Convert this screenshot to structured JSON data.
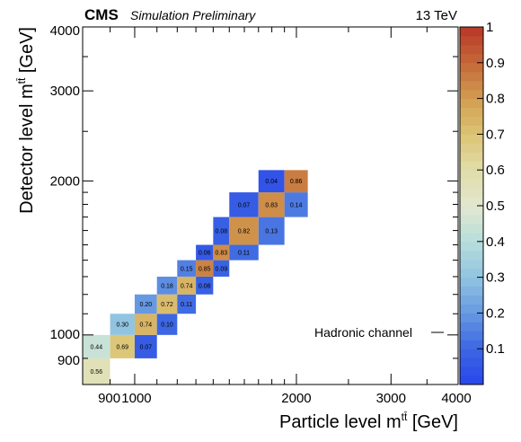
{
  "header": {
    "experiment": "CMS",
    "status": "Simulation Preliminary",
    "energy": "13 TeV"
  },
  "chart_data": {
    "type": "heatmap",
    "xlabel_main": "Particle level m",
    "xlabel_sup": "tt̄",
    "xlabel_unit": "[GeV]",
    "ylabel_main": "Detector level m",
    "ylabel_sup": "tt̄",
    "ylabel_unit": "[GeV]",
    "bin_edges": [
      800,
      900,
      1000,
      1100,
      1200,
      1300,
      1400,
      1500,
      1700,
      1900,
      2100,
      2400,
      2800,
      4000
    ],
    "xlim": [
      800,
      4000
    ],
    "ylim": [
      800,
      4000
    ],
    "x_tick_labels": [
      "900",
      "1000",
      "2000",
      "3000",
      "4000"
    ],
    "y_tick_labels": [
      "900",
      "1000",
      "2000",
      "3000",
      "4000"
    ],
    "zlim": [
      0,
      1
    ],
    "colorbar_ticks": [
      "0.1",
      "0.2",
      "0.3",
      "0.4",
      "0.5",
      "0.6",
      "0.7",
      "0.8",
      "0.9",
      "1"
    ],
    "annotation": "Hadronic channel",
    "grid": false,
    "cells": [
      {
        "xbin": 0,
        "ybin": 0,
        "value": 0.56,
        "label": "0.56"
      },
      {
        "xbin": 0,
        "ybin": 1,
        "value": 0.44,
        "label": "0.44"
      },
      {
        "xbin": 1,
        "ybin": 1,
        "value": 0.69,
        "label": "0.69"
      },
      {
        "xbin": 2,
        "ybin": 1,
        "value": 0.07,
        "label": "0.07"
      },
      {
        "xbin": 1,
        "ybin": 2,
        "value": 0.3,
        "label": "0.30"
      },
      {
        "xbin": 2,
        "ybin": 2,
        "value": 0.74,
        "label": "0.74"
      },
      {
        "xbin": 3,
        "ybin": 2,
        "value": 0.1,
        "label": "0.10"
      },
      {
        "xbin": 2,
        "ybin": 3,
        "value": 0.2,
        "label": "0.20"
      },
      {
        "xbin": 3,
        "ybin": 3,
        "value": 0.72,
        "label": "0.72"
      },
      {
        "xbin": 4,
        "ybin": 3,
        "value": 0.11,
        "label": "0.11"
      },
      {
        "xbin": 3,
        "ybin": 4,
        "value": 0.18,
        "label": "0.18"
      },
      {
        "xbin": 4,
        "ybin": 4,
        "value": 0.74,
        "label": "0.74"
      },
      {
        "xbin": 5,
        "ybin": 4,
        "value": 0.08,
        "label": "0.08"
      },
      {
        "xbin": 4,
        "ybin": 5,
        "value": 0.15,
        "label": "0.15"
      },
      {
        "xbin": 5,
        "ybin": 5,
        "value": 0.85,
        "label": "0.85"
      },
      {
        "xbin": 6,
        "ybin": 5,
        "value": 0.09,
        "label": "0.09"
      },
      {
        "xbin": 5,
        "ybin": 6,
        "value": 0.06,
        "label": "0.06"
      },
      {
        "xbin": 6,
        "ybin": 6,
        "value": 0.83,
        "label": "0.83"
      },
      {
        "xbin": 7,
        "ybin": 6,
        "value": 0.11,
        "label": "0.11"
      },
      {
        "xbin": 6,
        "ybin": 7,
        "value": 0.08,
        "label": "0.08"
      },
      {
        "xbin": 7,
        "ybin": 7,
        "value": 0.82,
        "label": "0.82"
      },
      {
        "xbin": 8,
        "ybin": 7,
        "value": 0.13,
        "label": "0.13"
      },
      {
        "xbin": 7,
        "ybin": 8,
        "value": 0.07,
        "label": "0.07"
      },
      {
        "xbin": 8,
        "ybin": 8,
        "value": 0.83,
        "label": "0.83"
      },
      {
        "xbin": 9,
        "ybin": 8,
        "value": 0.14,
        "label": "0.14"
      },
      {
        "xbin": 8,
        "ybin": 9,
        "value": 0.04,
        "label": "0.04"
      },
      {
        "xbin": 9,
        "ybin": 9,
        "value": 0.86,
        "label": "0.86"
      }
    ]
  }
}
